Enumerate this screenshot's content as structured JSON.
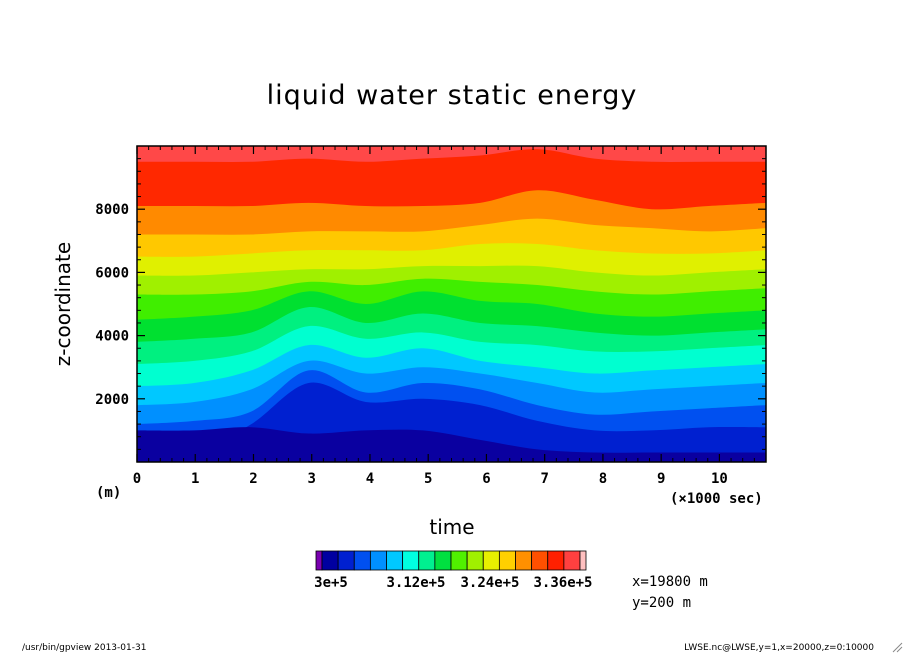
{
  "chart_data": {
    "type": "heatmap",
    "title": "liquid water static energy",
    "xlabel": "time",
    "ylabel": "z-coordinate",
    "x_unit": "(×1000 sec)",
    "y_unit": "(m)",
    "xlim": [
      0,
      10.8
    ],
    "ylim": [
      0,
      10000
    ],
    "x_ticks": [
      "0",
      "1",
      "2",
      "3",
      "4",
      "5",
      "6",
      "7",
      "8",
      "9",
      "10"
    ],
    "y_ticks": [
      "2000",
      "4000",
      "6000",
      "8000"
    ],
    "y_tick_values": [
      2000,
      4000,
      6000,
      8000
    ],
    "x_tick_values": [
      0,
      1,
      2,
      3,
      4,
      5,
      6,
      7,
      8,
      9,
      10
    ],
    "colorbar": {
      "labels": [
        "3e+5",
        "3.12e+5",
        "3.24e+5",
        "3.36e+5"
      ],
      "colors": [
        "#7a00b0",
        "#0000a0",
        "#0020d0",
        "#0050f0",
        "#0090ff",
        "#00c8ff",
        "#00ffe0",
        "#00f090",
        "#00e040",
        "#50f000",
        "#a0f000",
        "#e8f000",
        "#ffd000",
        "#ff9000",
        "#ff5000",
        "#ff2000",
        "#ff4040",
        "#ffc0c0"
      ]
    },
    "level_bands": [
      {
        "color": "#0a00a0",
        "z": [
          1000,
          1000,
          1100,
          900,
          1000,
          1000,
          700,
          400,
          300,
          300,
          300,
          300
        ]
      },
      {
        "color": "#0020d0",
        "z": [
          300,
          300,
          1200,
          2500,
          1900,
          2000,
          1800,
          1300,
          1000,
          1000,
          1100,
          1100
        ]
      },
      {
        "color": "#0050f0",
        "z": [
          1200,
          1300,
          1600,
          2900,
          2200,
          2500,
          2300,
          1800,
          1500,
          1600,
          1700,
          1800
        ]
      },
      {
        "color": "#0090ff",
        "z": [
          1800,
          1900,
          2300,
          3200,
          2800,
          3000,
          2800,
          2500,
          2200,
          2300,
          2400,
          2500
        ]
      },
      {
        "color": "#00c8ff",
        "z": [
          2400,
          2500,
          2900,
          3700,
          3300,
          3600,
          3200,
          3000,
          2800,
          2900,
          3000,
          3100
        ]
      },
      {
        "color": "#00ffd0",
        "z": [
          3100,
          3200,
          3500,
          4300,
          3900,
          4100,
          3800,
          3700,
          3500,
          3500,
          3600,
          3700
        ]
      },
      {
        "color": "#00f080",
        "z": [
          3800,
          3900,
          4100,
          4900,
          4400,
          4700,
          4400,
          4300,
          4100,
          4000,
          4100,
          4200
        ]
      },
      {
        "color": "#00e030",
        "z": [
          4500,
          4600,
          4800,
          5400,
          5000,
          5400,
          5100,
          5000,
          4700,
          4600,
          4700,
          4800
        ]
      },
      {
        "color": "#40ee00",
        "z": [
          5300,
          5300,
          5400,
          5700,
          5600,
          5800,
          5700,
          5600,
          5400,
          5300,
          5400,
          5500
        ]
      },
      {
        "color": "#a0f000",
        "z": [
          5900,
          5900,
          6000,
          6100,
          6100,
          6200,
          6200,
          6200,
          6000,
          5900,
          6000,
          6100
        ]
      },
      {
        "color": "#e0f000",
        "z": [
          6500,
          6500,
          6600,
          6700,
          6700,
          6700,
          6900,
          6900,
          6700,
          6600,
          6600,
          6700
        ]
      },
      {
        "color": "#ffc800",
        "z": [
          7200,
          7200,
          7200,
          7300,
          7300,
          7300,
          7500,
          7700,
          7500,
          7400,
          7300,
          7400
        ]
      },
      {
        "color": "#ff8a00",
        "z": [
          8100,
          8100,
          8100,
          8200,
          8100,
          8100,
          8200,
          8600,
          8300,
          8000,
          8100,
          8200
        ]
      },
      {
        "color": "#ff2800",
        "z": [
          9500,
          9500,
          9500,
          9600,
          9500,
          9600,
          9700,
          9900,
          9600,
          9500,
          9500,
          9500
        ]
      }
    ],
    "top_color": "#ff4848",
    "annotations": [
      "x=19800 m",
      "y=200 m"
    ]
  },
  "footer": {
    "left": "/usr/bin/gpview  2013-01-31",
    "right": "LWSE.nc@LWSE,y=1,x=20000,z=0:10000"
  }
}
